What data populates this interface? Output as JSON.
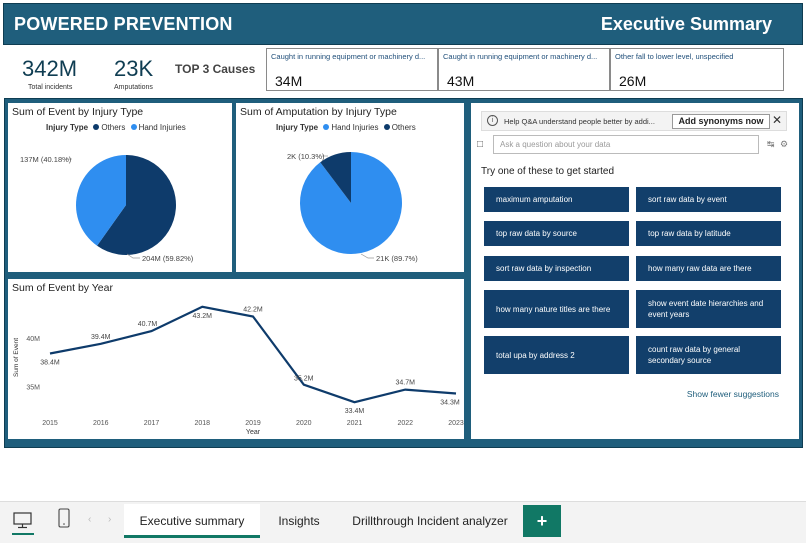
{
  "header": {
    "title": "POWERED PREVENTION",
    "subtitle": "Executive Summary"
  },
  "kpis": [
    {
      "value": "342M",
      "label": "Total incidents"
    },
    {
      "value": "23K",
      "label": "Amputations"
    }
  ],
  "top3_label": "TOP 3 Causes",
  "causes": [
    {
      "label": "Caught in running equipment or machinery d...",
      "value": "34M"
    },
    {
      "label": "Caught in running equipment or machinery d...",
      "value": "43M"
    },
    {
      "label": "Other fall to lower level, unspecified",
      "value": "26M"
    }
  ],
  "pie1": {
    "title": "Sum of Event by Injury Type",
    "legend_title": "Injury Type",
    "legend": [
      "Others",
      "Hand Injuries"
    ],
    "labels": {
      "hand": "137M (40.18%)",
      "others": "204M (59.82%)"
    }
  },
  "pie2": {
    "title": "Sum of Amputation by Injury Type",
    "legend_title": "Injury Type",
    "legend": [
      "Hand Injuries",
      "Others"
    ],
    "labels": {
      "others": "2K (10.3%)",
      "hand": "21K (89.7%)"
    }
  },
  "line": {
    "title": "Sum of Event by Year"
  },
  "qa": {
    "banner": "Help Q&A understand people better by addi...",
    "synonyms_button": "Add synonyms now",
    "close": "✕",
    "placeholder": "Ask a question about your data",
    "try_text": "Try one of these to get started",
    "suggestions": [
      "maximum amputation",
      "sort raw data by event",
      "top raw data by source",
      "top raw data by latitude",
      "sort raw data by inspection",
      "how many raw data are there",
      "how many nature titles are there",
      "show event date hierarchies and event years",
      "total upa by address 2",
      "count raw data by general secondary source"
    ],
    "show_fewer": "Show fewer suggestions"
  },
  "tabs": [
    "Executive summary",
    "Insights",
    "Drillthrough Incident analyzer"
  ],
  "add_tab": "+",
  "icons": {
    "desktop": "desktop-icon",
    "phone": "phone-icon",
    "chat": "chat-icon",
    "info": "info-icon",
    "close": "close-icon",
    "share": "share-icon",
    "settings": "gear-icon",
    "prev": "chevron-left-icon",
    "next": "chevron-right-icon"
  },
  "colors": {
    "header": "#1f5e7c",
    "navy": "#0e3b6b",
    "blue": "#2f8ef0",
    "suggestion": "#123f6b",
    "tab_accent": "#117865"
  },
  "chart_data": [
    {
      "type": "pie",
      "title": "Sum of Event by Injury Type",
      "legend_title": "Injury Type",
      "slices": [
        {
          "name": "Others",
          "value": 204,
          "unit": "M",
          "percent": 59.82,
          "label": "204M (59.82%)",
          "color": "#0e3b6b"
        },
        {
          "name": "Hand Injuries",
          "value": 137,
          "unit": "M",
          "percent": 40.18,
          "label": "137M (40.18%)",
          "color": "#2f8ef0"
        }
      ]
    },
    {
      "type": "pie",
      "title": "Sum of Amputation by Injury Type",
      "legend_title": "Injury Type",
      "slices": [
        {
          "name": "Hand Injuries",
          "value": 21,
          "unit": "K",
          "percent": 89.7,
          "label": "21K (89.7%)",
          "color": "#2f8ef0"
        },
        {
          "name": "Others",
          "value": 2,
          "unit": "K",
          "percent": 10.3,
          "label": "2K (10.3%)",
          "color": "#0e3b6b"
        }
      ]
    },
    {
      "type": "line",
      "title": "Sum of Event by Year",
      "xlabel": "Year",
      "ylabel": "Sum of Event",
      "x": [
        2015,
        2016,
        2017,
        2018,
        2019,
        2020,
        2021,
        2022,
        2023
      ],
      "y": [
        38.4,
        39.4,
        40.7,
        43.2,
        42.2,
        35.2,
        33.4,
        34.7,
        34.3
      ],
      "point_labels": [
        "38.4M",
        "39.4M",
        "40.7M",
        "43.2M",
        "42.2M",
        "35.2M",
        "33.4M",
        "34.7M",
        "34.3M"
      ],
      "yticks": [
        35,
        40
      ],
      "ytick_labels": [
        "35M",
        "40M"
      ],
      "ylim": [
        32.5,
        44
      ],
      "color": "#0e3b6b"
    }
  ]
}
